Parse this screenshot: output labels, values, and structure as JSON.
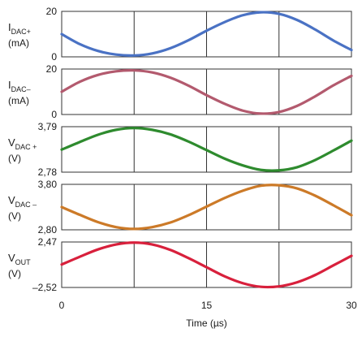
{
  "chart_data": {
    "type": "line",
    "xlabel": "Time (µs)",
    "xlim": [
      0,
      30
    ],
    "x_ticks": [
      "0",
      "15",
      "30"
    ],
    "panels": [
      {
        "label_main": "I",
        "label_sub": "DAC+",
        "label_unit": "(mA)",
        "ylim": [
          0,
          20
        ],
        "y_ticks": [
          "20",
          "0"
        ],
        "color": "#4a72c4",
        "series": [
          {
            "x": [
              0,
              1.875,
              3.75,
              5.625,
              7.5,
              9.375,
              11.25,
              13.125,
              15,
              16.875,
              18.75,
              20.625,
              22.5,
              24.375,
              26.25,
              28.125,
              30
            ],
            "y": [
              10.0,
              5.6,
              2.6,
              1.0,
              0.6,
              1.5,
              3.8,
              7.3,
              11.5,
              15.3,
              18.3,
              19.6,
              18.9,
              16.2,
              12.0,
              7.2,
              3.0
            ]
          }
        ]
      },
      {
        "label_main": "I",
        "label_sub": "DAC–",
        "label_unit": "(mA)",
        "ylim": [
          0,
          20
        ],
        "y_ticks": [
          "20",
          "0"
        ],
        "color": "#b35a6e",
        "series": [
          {
            "x": [
              0,
              1.875,
              3.75,
              5.625,
              7.5,
              9.375,
              11.25,
              13.125,
              15,
              16.875,
              18.75,
              20.625,
              22.5,
              24.375,
              26.25,
              28.125,
              30
            ],
            "y": [
              10.0,
              14.4,
              17.4,
              19.0,
              19.4,
              18.5,
              16.2,
              12.7,
              8.5,
              4.7,
              1.7,
              0.4,
              1.1,
              3.8,
              8.0,
              12.8,
              17.0
            ]
          }
        ]
      },
      {
        "label_main": "V",
        "label_sub": "DAC +",
        "label_unit": "(V)",
        "ylim": [
          2.78,
          3.79
        ],
        "y_ticks": [
          "3,79",
          "2,78"
        ],
        "color": "#2e8b2e",
        "series": [
          {
            "x": [
              0,
              1.875,
              3.75,
              5.625,
              7.5,
              9.375,
              11.25,
              13.125,
              15,
              16.875,
              18.75,
              20.625,
              22.5,
              24.375,
              26.25,
              28.125,
              30
            ],
            "y": [
              3.28,
              3.45,
              3.61,
              3.72,
              3.76,
              3.72,
              3.62,
              3.46,
              3.27,
              3.08,
              2.93,
              2.83,
              2.82,
              2.89,
              3.05,
              3.26,
              3.48
            ]
          }
        ]
      },
      {
        "label_main": "V",
        "label_sub": "DAC –",
        "label_unit": "(V)",
        "ylim": [
          2.8,
          3.8
        ],
        "y_ticks": [
          "3,80",
          "2,80"
        ],
        "color": "#cc7a28",
        "series": [
          {
            "x": [
              0,
              1.875,
              3.75,
              5.625,
              7.5,
              9.375,
              11.25,
              13.125,
              15,
              16.875,
              18.75,
              20.625,
              22.5,
              24.375,
              26.25,
              28.125,
              30
            ],
            "y": [
              3.3,
              3.13,
              2.97,
              2.86,
              2.82,
              2.86,
              2.96,
              3.12,
              3.31,
              3.5,
              3.66,
              3.77,
              3.78,
              3.71,
              3.55,
              3.34,
              3.12
            ]
          }
        ]
      },
      {
        "label_main": "V",
        "label_sub": "OUT",
        "label_unit": "(V)",
        "ylim": [
          -2.52,
          2.47
        ],
        "y_ticks": [
          "2,47",
          "–2,52"
        ],
        "color": "#d8203c",
        "series": [
          {
            "x": [
              0,
              1.875,
              3.75,
              5.625,
              7.5,
              9.375,
              11.25,
              13.125,
              15,
              16.875,
              18.75,
              20.625,
              22.5,
              24.375,
              26.25,
              28.125,
              30
            ],
            "y": [
              0.0,
              0.85,
              1.65,
              2.2,
              2.4,
              2.2,
              1.6,
              0.7,
              -0.3,
              -1.3,
              -2.05,
              -2.45,
              -2.4,
              -1.95,
              -1.15,
              -0.1,
              0.95
            ]
          }
        ]
      }
    ],
    "grid": "vertical"
  }
}
